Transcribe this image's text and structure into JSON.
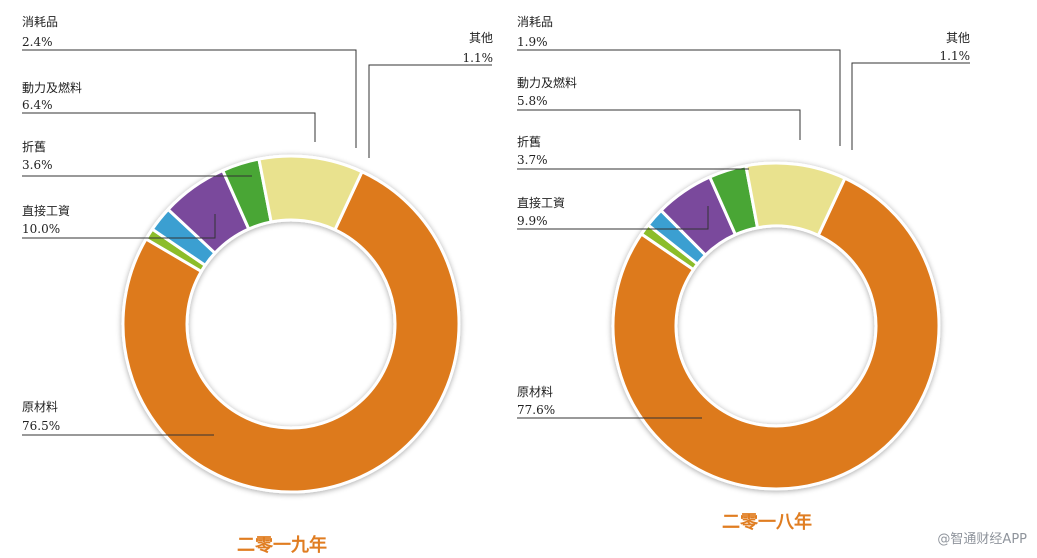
{
  "chart_data": [
    {
      "type": "pie",
      "title": "二零一九年",
      "slices": [
        {
          "label": "原材料",
          "value_text": "76.5%",
          "value": 76.5,
          "color": "#dd7a1b"
        },
        {
          "label": "其他",
          "value_text": "1.1%",
          "value": 1.1,
          "color": "#8cbd2c"
        },
        {
          "label": "消耗品",
          "value_text": "2.4%",
          "value": 2.4,
          "color": "#3a9fd1"
        },
        {
          "label": "動力及燃料",
          "value_text": "6.4%",
          "value": 6.4,
          "color": "#7a4a9c"
        },
        {
          "label": "折舊",
          "value_text": "3.6%",
          "value": 3.6,
          "color": "#4aa634"
        },
        {
          "label": "直接工資",
          "value_text": "10.0%",
          "value": 10.0,
          "color": "#e9e28e"
        }
      ]
    },
    {
      "type": "pie",
      "title": "二零一八年",
      "slices": [
        {
          "label": "原材料",
          "value_text": "77.6%",
          "value": 77.6,
          "color": "#dd7a1b"
        },
        {
          "label": "其他",
          "value_text": "1.1%",
          "value": 1.1,
          "color": "#8cbd2c"
        },
        {
          "label": "消耗品",
          "value_text": "1.9%",
          "value": 1.9,
          "color": "#3a9fd1"
        },
        {
          "label": "動力及燃料",
          "value_text": "5.8%",
          "value": 5.8,
          "color": "#7a4a9c"
        },
        {
          "label": "折舊",
          "value_text": "3.7%",
          "value": 3.7,
          "color": "#4aa634"
        },
        {
          "label": "直接工資",
          "value_text": "9.9%",
          "value": 9.9,
          "color": "#e9e28e"
        }
      ]
    }
  ],
  "watermark": "@智通财经APP"
}
